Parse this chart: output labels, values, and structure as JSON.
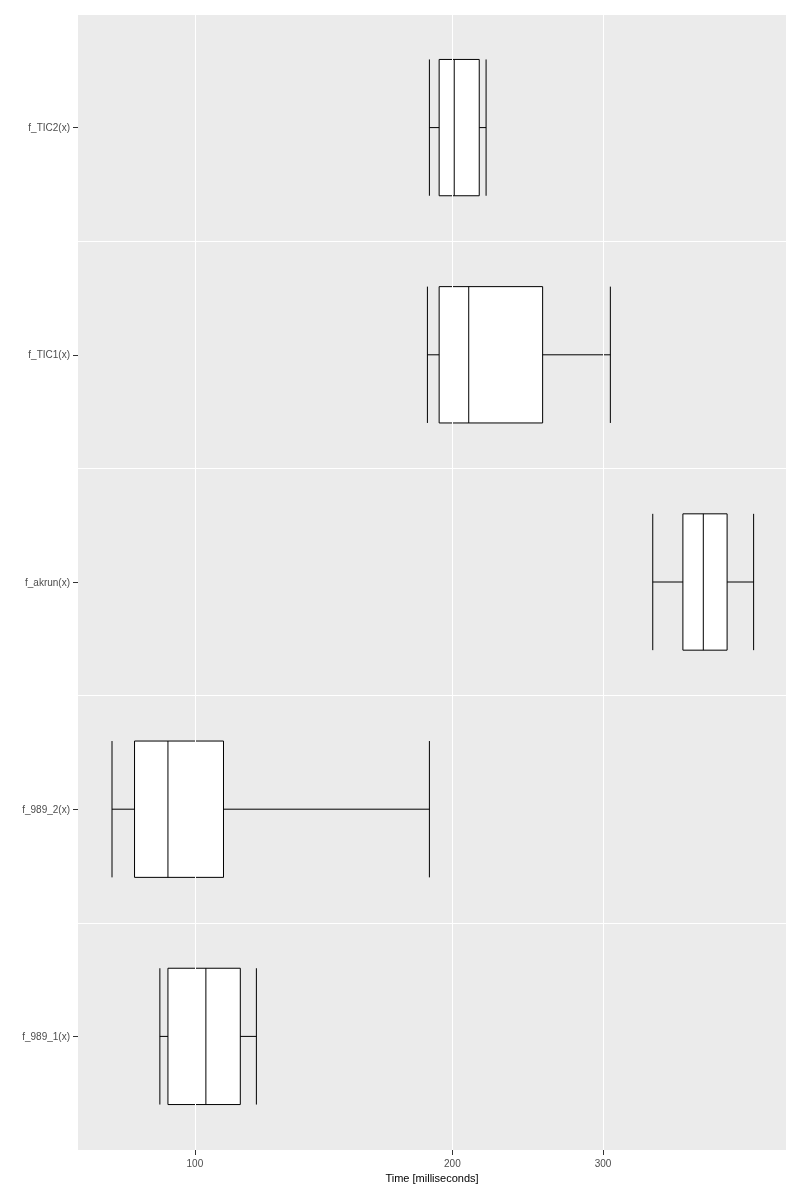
{
  "chart_data": {
    "type": "box",
    "orientation": "horizontal",
    "log": "x",
    "grid": true,
    "xlabel": "Time [milliseconds]",
    "categories": [
      "f_TIC2(x)",
      "f_TIC1(x)",
      "f_akrun(x)",
      "f_989_2(x)",
      "f_989_1(x)"
    ],
    "xlim": [
      73,
      491
    ],
    "xticks": [
      100,
      200,
      300
    ],
    "series": [
      {
        "color": "#000000",
        "boxes": [
          {
            "low": 188,
            "q1": 193,
            "median": 201,
            "q3": 215,
            "high": 219
          },
          {
            "low": 187,
            "q1": 193,
            "median": 209,
            "q3": 255,
            "high": 306
          },
          {
            "low": 343,
            "q1": 372,
            "median": 393,
            "q3": 419,
            "high": 450
          },
          {
            "low": 80,
            "q1": 85,
            "median": 93,
            "q3": 108,
            "high": 188
          },
          {
            "low": 91,
            "q1": 93,
            "median": 103,
            "q3": 113,
            "high": 118
          }
        ]
      }
    ]
  }
}
